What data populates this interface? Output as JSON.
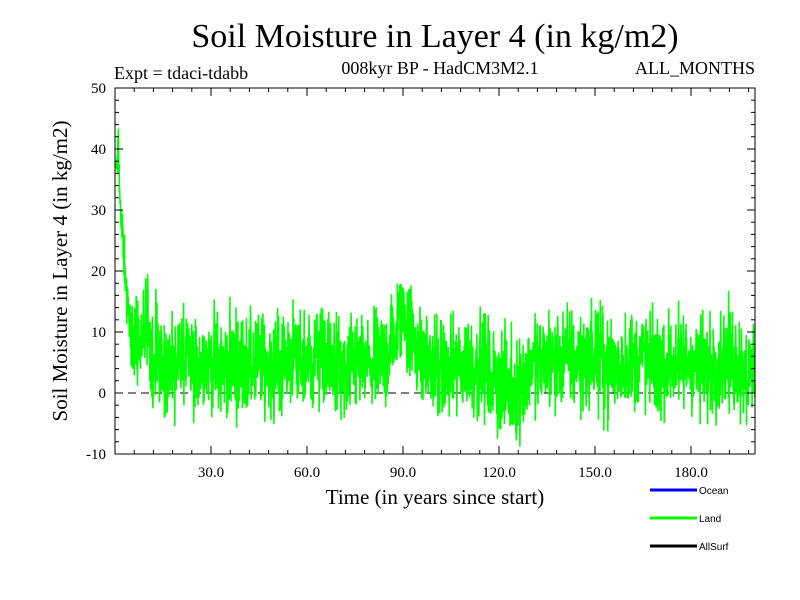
{
  "chart_data": {
    "type": "line",
    "title": "Soil Moisture in Layer 4 (in kg/m2)",
    "subtitle_left": "Expt = tdaci-tdabb",
    "subtitle_center": "008kyr BP - HadCM3M2.1",
    "subtitle_right": "ALL_MONTHS",
    "xlabel": "Time (in years since start)",
    "ylabel": "Soil Moisture in Layer 4 (in kg/m2)",
    "xlim": [
      0,
      200
    ],
    "ylim": [
      -10,
      50
    ],
    "x_ticks": [
      30,
      60,
      90,
      120,
      150,
      180
    ],
    "x_tick_labels": [
      "30.0",
      "60.0",
      "90.0",
      "120.0",
      "150.0",
      "180.0"
    ],
    "y_ticks": [
      -10,
      0,
      10,
      20,
      30,
      40,
      50
    ],
    "y_tick_labels": [
      "-10",
      "0",
      "10",
      "20",
      "30",
      "40",
      "50"
    ],
    "zero_line": true,
    "series": [
      {
        "name": "Ocean",
        "color": "#0000ff",
        "x": [],
        "values": []
      },
      {
        "name": "Land",
        "color": "#00ff00",
        "x": [
          0.5,
          1,
          1.5,
          2,
          3,
          4,
          5,
          6,
          8,
          10,
          12,
          14,
          16,
          18,
          20,
          22,
          25,
          28,
          30,
          33,
          36,
          40,
          45,
          50,
          55,
          60,
          65,
          70,
          72,
          75,
          80,
          85,
          88,
          90,
          92,
          95,
          100,
          105,
          110,
          115,
          120,
          123,
          125,
          128,
          130,
          135,
          140,
          145,
          150,
          155,
          160,
          165,
          170,
          175,
          180,
          185,
          190,
          195,
          198,
          200
        ],
        "values": [
          36,
          43,
          33,
          27,
          22,
          14,
          9,
          8,
          7,
          11,
          5,
          7,
          3,
          4,
          6,
          5,
          4,
          5,
          6,
          4,
          5,
          4,
          5,
          4,
          6,
          5,
          6,
          4,
          2,
          5,
          4,
          6,
          10,
          14,
          11,
          7,
          4,
          3,
          5,
          4,
          2,
          1,
          0,
          3,
          4,
          5,
          6,
          5,
          6,
          4,
          5,
          6,
          4,
          5,
          5,
          4,
          6,
          5,
          3,
          4
        ]
      },
      {
        "name": "AllSurf",
        "color": "#000000",
        "x": [],
        "values": []
      }
    ],
    "legend": [
      {
        "label": "Ocean",
        "color": "#0000ff"
      },
      {
        "label": "Land",
        "color": "#00ff00"
      },
      {
        "label": "AllSurf",
        "color": "#000000"
      }
    ]
  }
}
